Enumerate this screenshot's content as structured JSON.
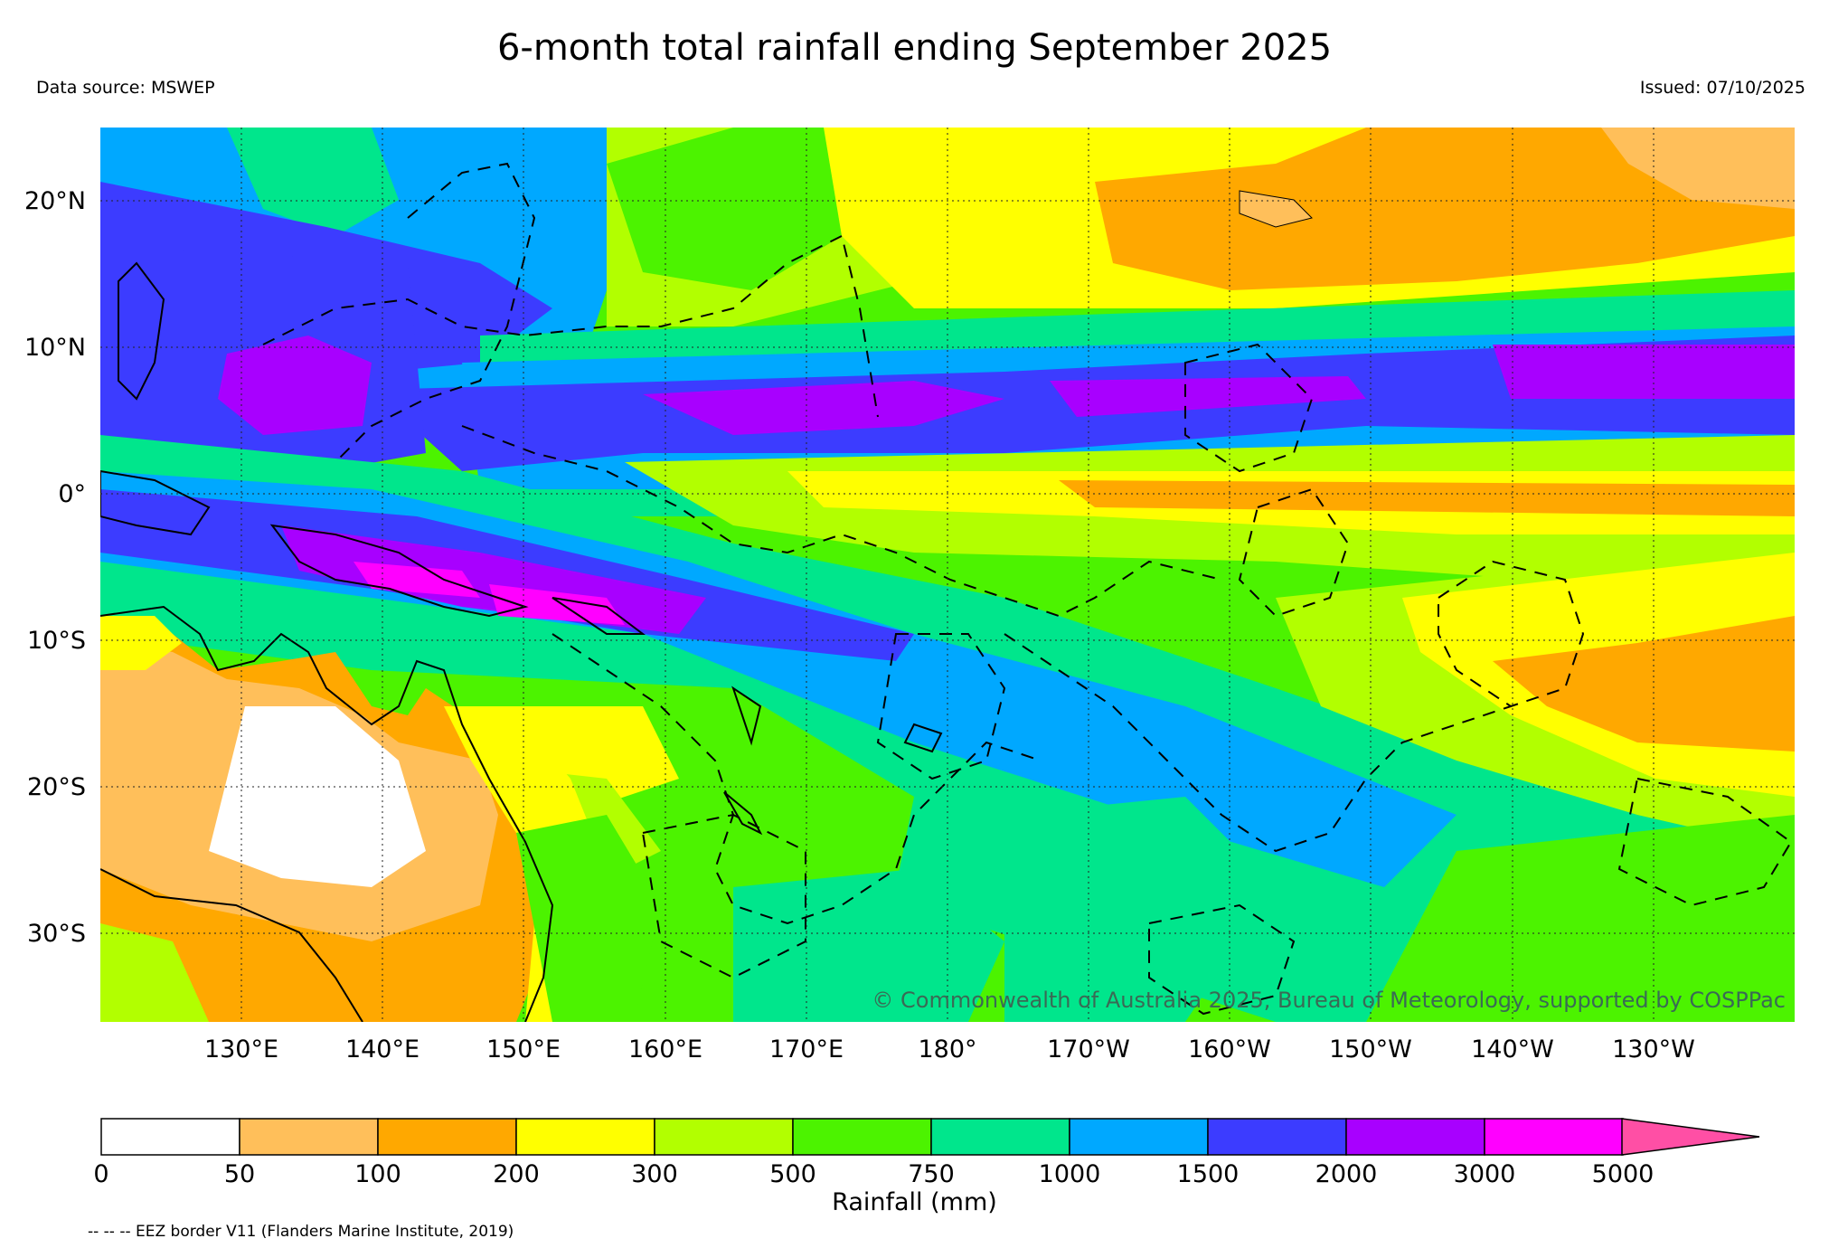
{
  "title": "6-month total rainfall ending September 2025",
  "data_source": "Data source: MSWEP",
  "issued": "Issued: 07/10/2025",
  "copyright": "© Commonwealth of Australia 2025, Bureau of Meteorology, supported by COSPPac",
  "footnote": "-- -- -- EEZ border V11 (Flanders Marine Institute, 2019)",
  "lat_labels": [
    "20°N",
    "10°N",
    "0°",
    "10°S",
    "20°S",
    "30°S"
  ],
  "lon_labels": [
    "130°E",
    "140°E",
    "150°E",
    "160°E",
    "170°E",
    "180°",
    "170°W",
    "160°W",
    "150°W",
    "140°W",
    "130°W"
  ],
  "map_extent": {
    "lon_min": 120,
    "lon_max": 240,
    "lat_min": -36,
    "lat_max": 25
  },
  "colorbar": {
    "title": "Rainfall (mm)",
    "ticks": [
      "0",
      "50",
      "100",
      "200",
      "300",
      "500",
      "750",
      "1000",
      "1500",
      "2000",
      "3000",
      "5000"
    ],
    "colors": [
      "#ffffff",
      "#ffbf5a",
      "#ffa800",
      "#ffff00",
      "#b2ff00",
      "#4cf300",
      "#00e68c",
      "#00a8ff",
      "#3c3cff",
      "#a800ff",
      "#ff00ff"
    ],
    "extend_color": "#ff4fa5"
  },
  "eez_style": "dashed",
  "gridlines": "dotted"
}
